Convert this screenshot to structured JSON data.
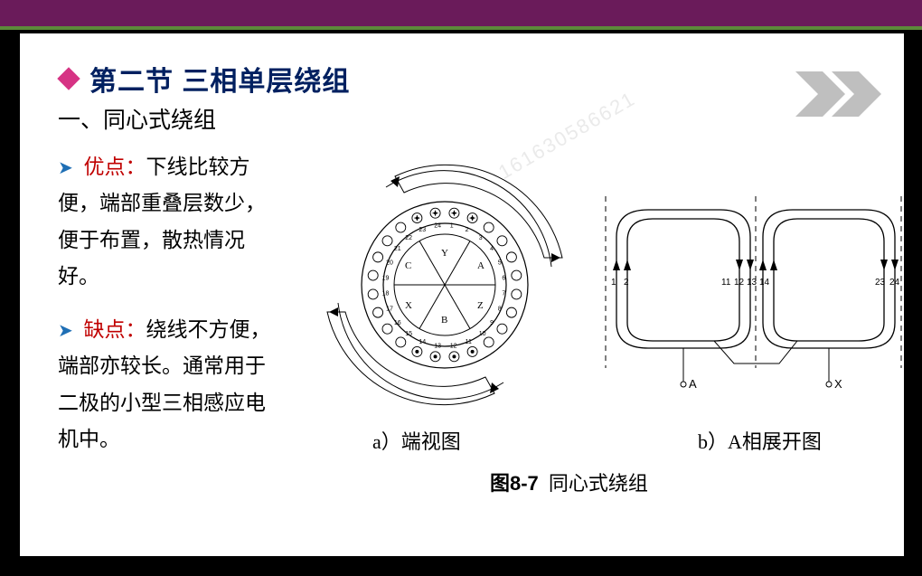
{
  "title": "第二节 三相单层绕组",
  "subtitle": "一、同心式绕组",
  "para1": {
    "keyword": "优点：",
    "text": "下线比较方便，端部重叠层数少，便于布置，散热情况好。"
  },
  "para2": {
    "keyword": "缺点：",
    "text": "绕线不方便，端部亦较长。通常用于二极的小型三相感应电机中。"
  },
  "captions": {
    "a": "a）端视图",
    "b": "b）A相展开图",
    "fig_num": "图8-7",
    "fig_title": "同心式绕组"
  },
  "watermark": "161630586621",
  "colors": {
    "title": "#002060",
    "bullet": "#1f6fb5",
    "keyword": "#c00000",
    "diamond": "#d63384",
    "topbar": "#6a1b5a",
    "accent": "#5c8a3a",
    "chevron": "#bfbfbf"
  },
  "diagram_a": {
    "type": "end-view-circular",
    "slots": 24,
    "sectors": [
      "Y",
      "A",
      "Z",
      "B",
      "X",
      "C"
    ],
    "highlighted_slots": {
      "dots_in": [
        1,
        2,
        23,
        24
      ],
      "dots_out": [
        11,
        12,
        13,
        14
      ]
    }
  },
  "diagram_b": {
    "type": "developed-winding",
    "coil_groups": [
      {
        "slots": [
          "1",
          "2",
          "11",
          "12",
          "13",
          "14"
        ]
      },
      {
        "slots": [
          "23",
          "24"
        ]
      }
    ],
    "terminals": [
      "A",
      "X"
    ]
  }
}
